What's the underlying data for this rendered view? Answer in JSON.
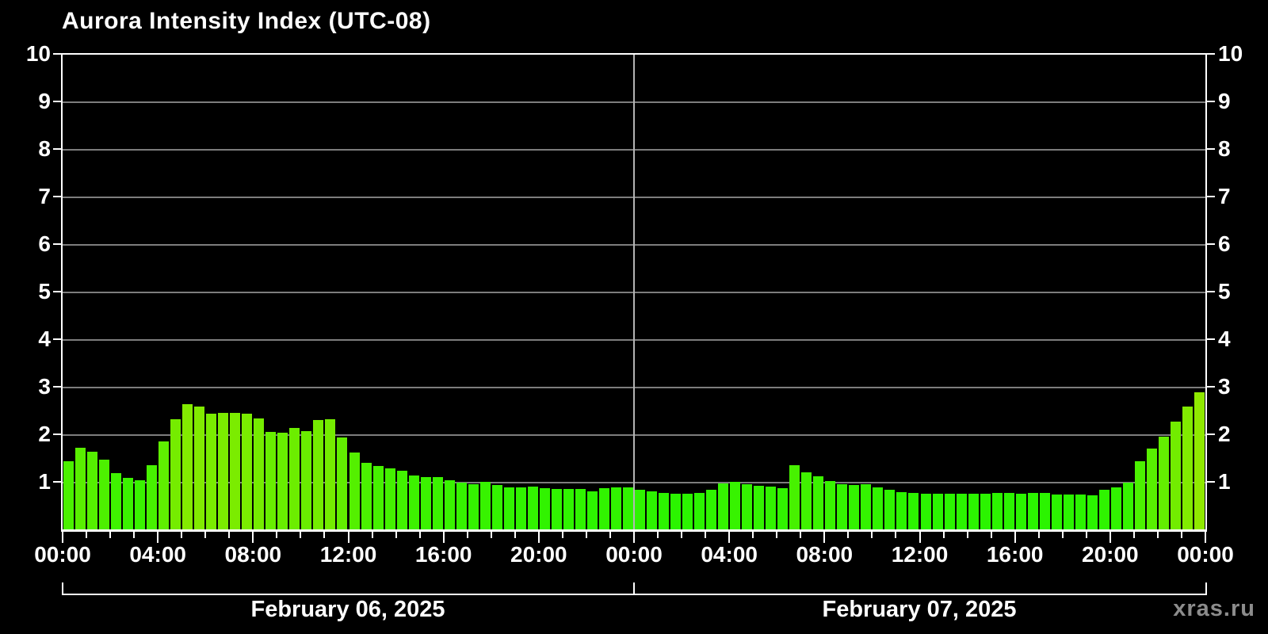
{
  "title": "Aurora Intensity Index (UTC-08)",
  "watermark": "xras.ru",
  "colors": {
    "background": "#000000",
    "frame": "#ffffff",
    "gridline": "#7d7d7d",
    "day_separator": "#b4b4b4",
    "text": "#ffffff",
    "watermark_text": "#8c8c8c",
    "bar_low": "#2bf400",
    "bar_high": "#8ff000"
  },
  "chart_data": {
    "type": "bar",
    "title": "Aurora Intensity Index (UTC-08)",
    "xlabel": "",
    "ylabel": "",
    "ylim": [
      0,
      10
    ],
    "grid": "horizontal",
    "y_tick_labels": [
      "1",
      "2",
      "3",
      "4",
      "5",
      "6",
      "7",
      "8",
      "9",
      "10"
    ],
    "x_tick_labels": [
      "00:00",
      "04:00",
      "08:00",
      "12:00",
      "16:00",
      "20:00",
      "00:00",
      "04:00",
      "08:00",
      "12:00",
      "16:00",
      "20:00",
      "00:00"
    ],
    "bar_interval_minutes": 30,
    "days": [
      {
        "date": "February 06, 2025",
        "times": [
          "00:00",
          "00:30",
          "01:00",
          "01:30",
          "02:00",
          "02:30",
          "03:00",
          "03:30",
          "04:00",
          "04:30",
          "05:00",
          "05:30",
          "06:00",
          "06:30",
          "07:00",
          "07:30",
          "08:00",
          "08:30",
          "09:00",
          "09:30",
          "10:00",
          "10:30",
          "11:00",
          "11:30",
          "12:00",
          "12:30",
          "13:00",
          "13:30",
          "14:00",
          "14:30",
          "15:00",
          "15:30",
          "16:00",
          "16:30",
          "17:00",
          "17:30",
          "18:00",
          "18:30",
          "19:00",
          "19:30",
          "20:00",
          "20:30",
          "21:00",
          "21:30",
          "22:00",
          "22:30",
          "23:00",
          "23:30"
        ],
        "values": [
          1.43,
          1.72,
          1.64,
          1.47,
          1.18,
          1.08,
          1.04,
          1.35,
          1.85,
          2.32,
          2.63,
          2.58,
          2.43,
          2.45,
          2.45,
          2.43,
          2.33,
          2.05,
          2.04,
          2.14,
          2.06,
          2.3,
          2.31,
          1.93,
          1.62,
          1.4,
          1.33,
          1.28,
          1.23,
          1.14,
          1.1,
          1.1,
          1.04,
          0.98,
          0.95,
          1.0,
          0.93,
          0.88,
          0.88,
          0.9,
          0.87,
          0.85,
          0.85,
          0.85,
          0.8,
          0.87,
          0.88,
          0.88
        ]
      },
      {
        "date": "February 07, 2025",
        "times": [
          "00:00",
          "00:30",
          "01:00",
          "01:30",
          "02:00",
          "02:30",
          "03:00",
          "03:30",
          "04:00",
          "04:30",
          "05:00",
          "05:30",
          "06:00",
          "06:30",
          "07:00",
          "07:30",
          "08:00",
          "08:30",
          "09:00",
          "09:30",
          "10:00",
          "10:30",
          "11:00",
          "11:30",
          "12:00",
          "12:30",
          "13:00",
          "13:30",
          "14:00",
          "14:30",
          "15:00",
          "15:30",
          "16:00",
          "16:30",
          "17:00",
          "17:30",
          "18:00",
          "18:30",
          "19:00",
          "19:30",
          "20:00",
          "20:30",
          "21:00",
          "21:30",
          "22:00",
          "22:30",
          "23:00",
          "23:30"
        ],
        "values": [
          0.83,
          0.8,
          0.77,
          0.75,
          0.75,
          0.76,
          0.83,
          0.97,
          1.0,
          0.95,
          0.92,
          0.9,
          0.87,
          1.35,
          1.2,
          1.12,
          1.02,
          0.95,
          0.93,
          0.95,
          0.88,
          0.83,
          0.78,
          0.77,
          0.75,
          0.75,
          0.75,
          0.75,
          0.75,
          0.75,
          0.77,
          0.76,
          0.75,
          0.76,
          0.76,
          0.73,
          0.73,
          0.73,
          0.72,
          0.83,
          0.88,
          0.98,
          1.43,
          1.7,
          1.95,
          2.27,
          2.58,
          2.88
        ]
      }
    ]
  }
}
